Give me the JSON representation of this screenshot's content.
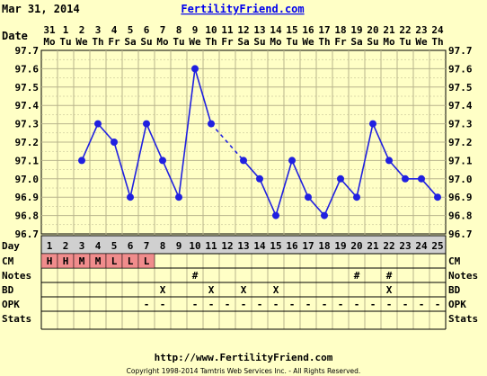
{
  "header": {
    "date": "Mar 31, 2014",
    "site": "FertilityFriend.com"
  },
  "footer": {
    "url": "http://www.FertilityFriend.com",
    "copyright": "Copyright 1998-2014 Tamtris Web Services Inc. - All Rights Reserved."
  },
  "row_labels": {
    "date": "Date",
    "day": "Day",
    "cm": "CM",
    "notes": "Notes",
    "bd": "BD",
    "opk": "OPK",
    "stats": "Stats"
  },
  "colors": {
    "line": "#2020e0",
    "grid": "#b8b48c",
    "cm_fill": "#f08c8c",
    "day_band": "#d0d0d0",
    "bg": "#ffffc6"
  },
  "chart_data": {
    "type": "line",
    "dates": [
      "31",
      "1",
      "2",
      "3",
      "4",
      "5",
      "6",
      "7",
      "8",
      "9",
      "10",
      "11",
      "12",
      "13",
      "14",
      "15",
      "16",
      "17",
      "18",
      "19",
      "20",
      "21",
      "22",
      "23",
      "24"
    ],
    "weekdays": [
      "Mo",
      "Tu",
      "We",
      "Th",
      "Fr",
      "Sa",
      "Su",
      "Mo",
      "Tu",
      "We",
      "Th",
      "Fr",
      "Sa",
      "Su",
      "Mo",
      "Tu",
      "We",
      "Th",
      "Fr",
      "Sa",
      "Su",
      "Mo",
      "Tu",
      "We",
      "Th"
    ],
    "cycle_days": [
      "1",
      "2",
      "3",
      "4",
      "5",
      "6",
      "7",
      "8",
      "9",
      "10",
      "11",
      "12",
      "13",
      "14",
      "15",
      "16",
      "17",
      "18",
      "19",
      "20",
      "21",
      "22",
      "23",
      "24",
      "25"
    ],
    "temperatures": [
      null,
      null,
      97.1,
      97.3,
      97.2,
      96.9,
      97.3,
      97.1,
      96.9,
      97.6,
      97.3,
      null,
      97.1,
      97.0,
      96.8,
      97.1,
      96.9,
      96.8,
      97.0,
      96.9,
      97.3,
      97.1,
      97.0,
      97.0,
      96.9
    ],
    "ylim": [
      96.7,
      97.7
    ],
    "yticks": [
      "97.7",
      "97.6",
      "97.5",
      "97.4",
      "97.3",
      "97.2",
      "97.1",
      "97.0",
      "96.9",
      "96.8",
      "96.7"
    ],
    "cervical_mucus": [
      "H",
      "H",
      "M",
      "M",
      "L",
      "L",
      "L",
      "",
      "",
      "",
      "",
      "",
      "",
      "",
      "",
      "",
      "",
      "",
      "",
      "",
      "",
      "",
      "",
      "",
      ""
    ],
    "notes": [
      "",
      "",
      "",
      "",
      "",
      "",
      "",
      "",
      "",
      "#",
      "",
      "",
      "",
      "",
      "",
      "",
      "",
      "",
      "",
      "#",
      "",
      "#",
      "",
      "",
      ""
    ],
    "bd": [
      "",
      "",
      "",
      "",
      "",
      "",
      "",
      "X",
      "",
      "",
      "X",
      "",
      "X",
      "",
      "X",
      "",
      "",
      "",
      "",
      "",
      "",
      "X",
      "",
      "",
      ""
    ],
    "opk": [
      "",
      "",
      "",
      "",
      "",
      "",
      "-",
      "-",
      "",
      "-",
      "-",
      "-",
      "-",
      "-",
      "-",
      "-",
      "-",
      "-",
      "-",
      "-",
      "-",
      "-",
      "-",
      "-",
      "-"
    ],
    "grid": true
  }
}
